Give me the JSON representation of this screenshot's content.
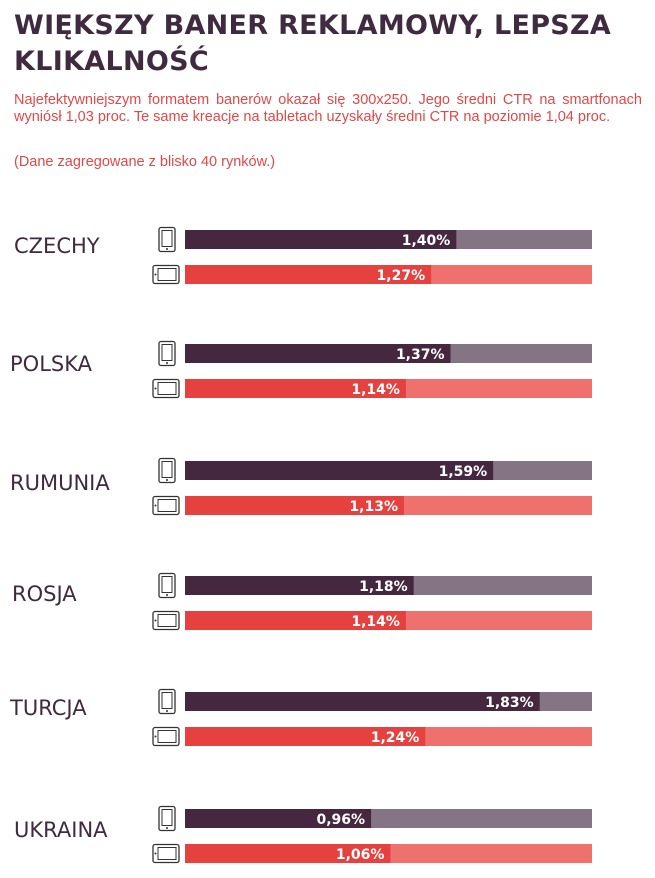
{
  "title": "WIĘKSZY BANER REKLAMOWY, LEPSZA KLIKALNOŚĆ",
  "subtitle": "Najefektywniejszym formatem banerów okazał się 300x250. Jego średni CTR na smartfonach wyniósł 1,03 proc. Te same kreacje na tabletach uzyskały średni CTR na poziomie 1,04 proc.",
  "note": "(Dane zagregowane z blisko 40 rynków.)",
  "colors": {
    "smartphone": "#45283f",
    "smartphone_track": "#857483",
    "tablet": "#e5423f",
    "tablet_track": "#ef716d",
    "text_dark": "#3f2a3f",
    "accent": "#e04848"
  },
  "icons": {
    "smartphone": "smartphone-icon",
    "tablet": "tablet-icon"
  },
  "chart_data": {
    "type": "bar",
    "orientation": "horizontal",
    "categories": [
      "CZECHY",
      "POLSKA",
      "RUMUNIA",
      "ROSJA",
      "TURCJA",
      "UKRAINA"
    ],
    "series": [
      {
        "key": "smartphone",
        "values": [
          1.4,
          1.37,
          1.59,
          1.18,
          1.83,
          0.96
        ],
        "labels": [
          "1,40%",
          "1,37%",
          "1,59%",
          "1,18%",
          "1,83%",
          "0,96%"
        ]
      },
      {
        "key": "tablet",
        "values": [
          1.27,
          1.14,
          1.13,
          1.14,
          1.24,
          1.06
        ],
        "labels": [
          "1,27%",
          "1,14%",
          "1,13%",
          "1,14%",
          "1,24%",
          "1,06%"
        ]
      }
    ],
    "xlim": [
      0,
      2.1
    ],
    "grid": false
  }
}
